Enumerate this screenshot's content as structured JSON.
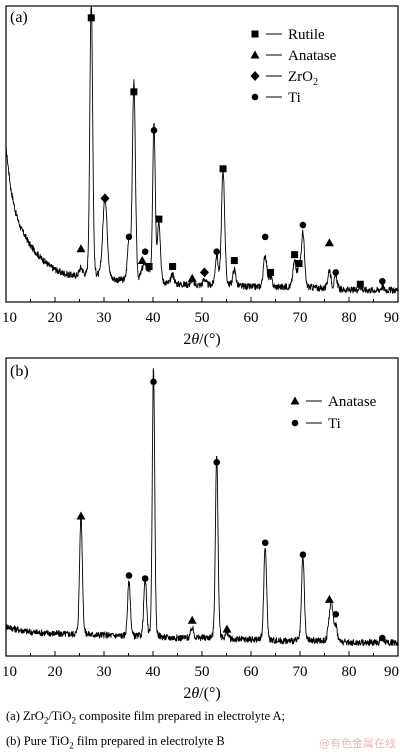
{
  "chart_data": [
    {
      "type": "line",
      "panel_label": "(a)",
      "xlabel_html": "2<tspan font-style='italic'>θ</tspan>/(°)",
      "x_ticks": [
        10,
        20,
        30,
        40,
        50,
        60,
        70,
        80,
        90
      ],
      "xlim": [
        10,
        90
      ],
      "ylim": [
        0,
        100
      ],
      "legend": {
        "position": "top-right",
        "entries": [
          {
            "marker": "square",
            "label": "Rutile"
          },
          {
            "marker": "triangle",
            "label": "Anatase"
          },
          {
            "marker": "diamond",
            "label": "ZrO",
            "sub": "2"
          },
          {
            "marker": "circle",
            "label": "Ti"
          }
        ]
      },
      "baseline": [
        [
          10,
          52
        ],
        [
          11,
          38
        ],
        [
          12,
          30
        ],
        [
          13,
          25
        ],
        [
          15,
          19
        ],
        [
          17,
          15
        ],
        [
          19,
          12
        ],
        [
          21,
          10
        ],
        [
          23,
          9
        ],
        [
          25,
          8.5
        ],
        [
          28,
          8
        ],
        [
          33,
          7
        ],
        [
          38,
          6.5
        ],
        [
          44,
          6
        ],
        [
          50,
          5.5
        ],
        [
          55,
          5.5
        ],
        [
          60,
          5
        ],
        [
          65,
          5
        ],
        [
          70,
          5
        ],
        [
          75,
          4.5
        ],
        [
          80,
          4
        ],
        [
          85,
          4
        ],
        [
          90,
          4
        ]
      ],
      "peaks": [
        {
          "x": 25.3,
          "h": 2.5,
          "w": 0.35
        },
        {
          "x": 27.4,
          "h": 87,
          "w": 0.28
        },
        {
          "x": 30.2,
          "h": 25,
          "w": 0.45
        },
        {
          "x": 35.1,
          "h": 13,
          "w": 0.3
        },
        {
          "x": 36.1,
          "h": 62,
          "w": 0.3
        },
        {
          "x": 37.8,
          "h": 3,
          "w": 0.3
        },
        {
          "x": 38.4,
          "h": 5,
          "w": 0.3
        },
        {
          "x": 39.2,
          "h": 3,
          "w": 0.3
        },
        {
          "x": 40.2,
          "h": 49,
          "w": 0.26
        },
        {
          "x": 41.2,
          "h": 19,
          "w": 0.3
        },
        {
          "x": 44.0,
          "h": 3,
          "w": 0.3
        },
        {
          "x": 48.0,
          "h": 1.5,
          "w": 0.3
        },
        {
          "x": 50.5,
          "h": 2,
          "w": 0.3
        },
        {
          "x": 53.0,
          "h": 9,
          "w": 0.3
        },
        {
          "x": 54.3,
          "h": 36,
          "w": 0.32
        },
        {
          "x": 56.6,
          "h": 5,
          "w": 0.3
        },
        {
          "x": 62.9,
          "h": 10,
          "w": 0.35
        },
        {
          "x": 64.0,
          "h": 3,
          "w": 0.3
        },
        {
          "x": 68.9,
          "h": 8,
          "w": 0.32
        },
        {
          "x": 69.8,
          "h": 6,
          "w": 0.3
        },
        {
          "x": 70.6,
          "h": 17,
          "w": 0.3
        },
        {
          "x": 76.0,
          "h": 6,
          "w": 0.3
        },
        {
          "x": 77.3,
          "h": 4,
          "w": 0.3
        },
        {
          "x": 82.3,
          "h": 1,
          "w": 0.3
        },
        {
          "x": 86.8,
          "h": 1,
          "w": 0.3
        }
      ],
      "markers": [
        {
          "type": "square",
          "x": 27.4,
          "y": 96
        },
        {
          "type": "square",
          "x": 36.1,
          "y": 71
        },
        {
          "type": "square",
          "x": 41.2,
          "y": 28
        },
        {
          "type": "square",
          "x": 44.0,
          "y": 12
        },
        {
          "type": "square",
          "x": 39.2,
          "y": 12
        },
        {
          "type": "square",
          "x": 54.3,
          "y": 45
        },
        {
          "type": "square",
          "x": 56.6,
          "y": 14
        },
        {
          "type": "square",
          "x": 64.0,
          "y": 10
        },
        {
          "type": "square",
          "x": 68.9,
          "y": 16
        },
        {
          "type": "square",
          "x": 69.8,
          "y": 13
        },
        {
          "type": "square",
          "x": 82.3,
          "y": 6
        },
        {
          "type": "triangle",
          "x": 25.3,
          "y": 18
        },
        {
          "type": "triangle",
          "x": 37.8,
          "y": 14
        },
        {
          "type": "triangle",
          "x": 48.0,
          "y": 8
        },
        {
          "type": "triangle",
          "x": 76.0,
          "y": 20
        },
        {
          "type": "diamond",
          "x": 30.2,
          "y": 35
        },
        {
          "type": "diamond",
          "x": 50.5,
          "y": 10
        },
        {
          "type": "circle",
          "x": 35.1,
          "y": 22
        },
        {
          "type": "circle",
          "x": 38.4,
          "y": 17
        },
        {
          "type": "circle",
          "x": 40.2,
          "y": 58
        },
        {
          "type": "circle",
          "x": 53.0,
          "y": 17
        },
        {
          "type": "circle",
          "x": 62.9,
          "y": 22
        },
        {
          "type": "circle",
          "x": 70.6,
          "y": 26
        },
        {
          "type": "circle",
          "x": 77.3,
          "y": 10
        },
        {
          "type": "circle",
          "x": 86.8,
          "y": 7
        }
      ]
    },
    {
      "type": "line",
      "panel_label": "(b)",
      "xlabel_html": "2<tspan font-style='italic'>θ</tspan>/(°)",
      "x_ticks": [
        10,
        20,
        30,
        40,
        50,
        60,
        70,
        80,
        90
      ],
      "xlim": [
        10,
        90
      ],
      "ylim": [
        0,
        100
      ],
      "legend": {
        "position": "top-right",
        "entries": [
          {
            "marker": "triangle",
            "label": "Anatase"
          },
          {
            "marker": "circle",
            "label": "Ti"
          }
        ]
      },
      "baseline": [
        [
          10,
          10
        ],
        [
          12,
          9
        ],
        [
          15,
          8
        ],
        [
          20,
          7.5
        ],
        [
          25,
          7
        ],
        [
          30,
          7
        ],
        [
          35,
          6.5
        ],
        [
          40,
          6
        ],
        [
          45,
          6
        ],
        [
          50,
          6
        ],
        [
          55,
          5.5
        ],
        [
          60,
          5.5
        ],
        [
          65,
          5
        ],
        [
          70,
          5
        ],
        [
          75,
          5
        ],
        [
          80,
          4.5
        ],
        [
          85,
          4.5
        ],
        [
          90,
          4.5
        ]
      ],
      "peaks": [
        {
          "x": 25.3,
          "h": 37,
          "w": 0.28
        },
        {
          "x": 35.1,
          "h": 17,
          "w": 0.28
        },
        {
          "x": 38.4,
          "h": 18,
          "w": 0.28
        },
        {
          "x": 40.1,
          "h": 84,
          "w": 0.24
        },
        {
          "x": 48.0,
          "h": 3,
          "w": 0.3
        },
        {
          "x": 53.0,
          "h": 57,
          "w": 0.26
        },
        {
          "x": 55.1,
          "h": 2,
          "w": 0.3
        },
        {
          "x": 62.9,
          "h": 29,
          "w": 0.28
        },
        {
          "x": 70.6,
          "h": 26,
          "w": 0.28
        },
        {
          "x": 76.0,
          "h": 6,
          "w": 0.3
        },
        {
          "x": 76.5,
          "h": 10,
          "w": 0.3
        },
        {
          "x": 77.3,
          "h": 5,
          "w": 0.3
        },
        {
          "x": 86.8,
          "h": 1.5,
          "w": 0.3
        }
      ],
      "markers": [
        {
          "type": "triangle",
          "x": 25.3,
          "y": 47
        },
        {
          "type": "triangle",
          "x": 48.0,
          "y": 12
        },
        {
          "type": "triangle",
          "x": 55.1,
          "y": 9
        },
        {
          "type": "triangle",
          "x": 76.0,
          "y": 19
        },
        {
          "type": "circle",
          "x": 35.1,
          "y": 27
        },
        {
          "type": "circle",
          "x": 38.4,
          "y": 26
        },
        {
          "type": "circle",
          "x": 40.1,
          "y": 92
        },
        {
          "type": "circle",
          "x": 53.0,
          "y": 65
        },
        {
          "type": "circle",
          "x": 62.9,
          "y": 38
        },
        {
          "type": "circle",
          "x": 70.6,
          "y": 34
        },
        {
          "type": "circle",
          "x": 77.3,
          "y": 14
        },
        {
          "type": "circle",
          "x": 86.8,
          "y": 6
        }
      ]
    }
  ],
  "captions": {
    "a_prefix": "(a)  ZrO",
    "a_sub1": "2",
    "a_mid": "/TiO",
    "a_sub2": "2",
    "a_suffix": "  composite  film  prepared  in  electrolyte  A;",
    "b_prefix": "(b) Pure TiO",
    "b_sub": "2",
    "b_suffix": " film prepared in electrolyte B"
  },
  "watermark": "@有色金属在线"
}
